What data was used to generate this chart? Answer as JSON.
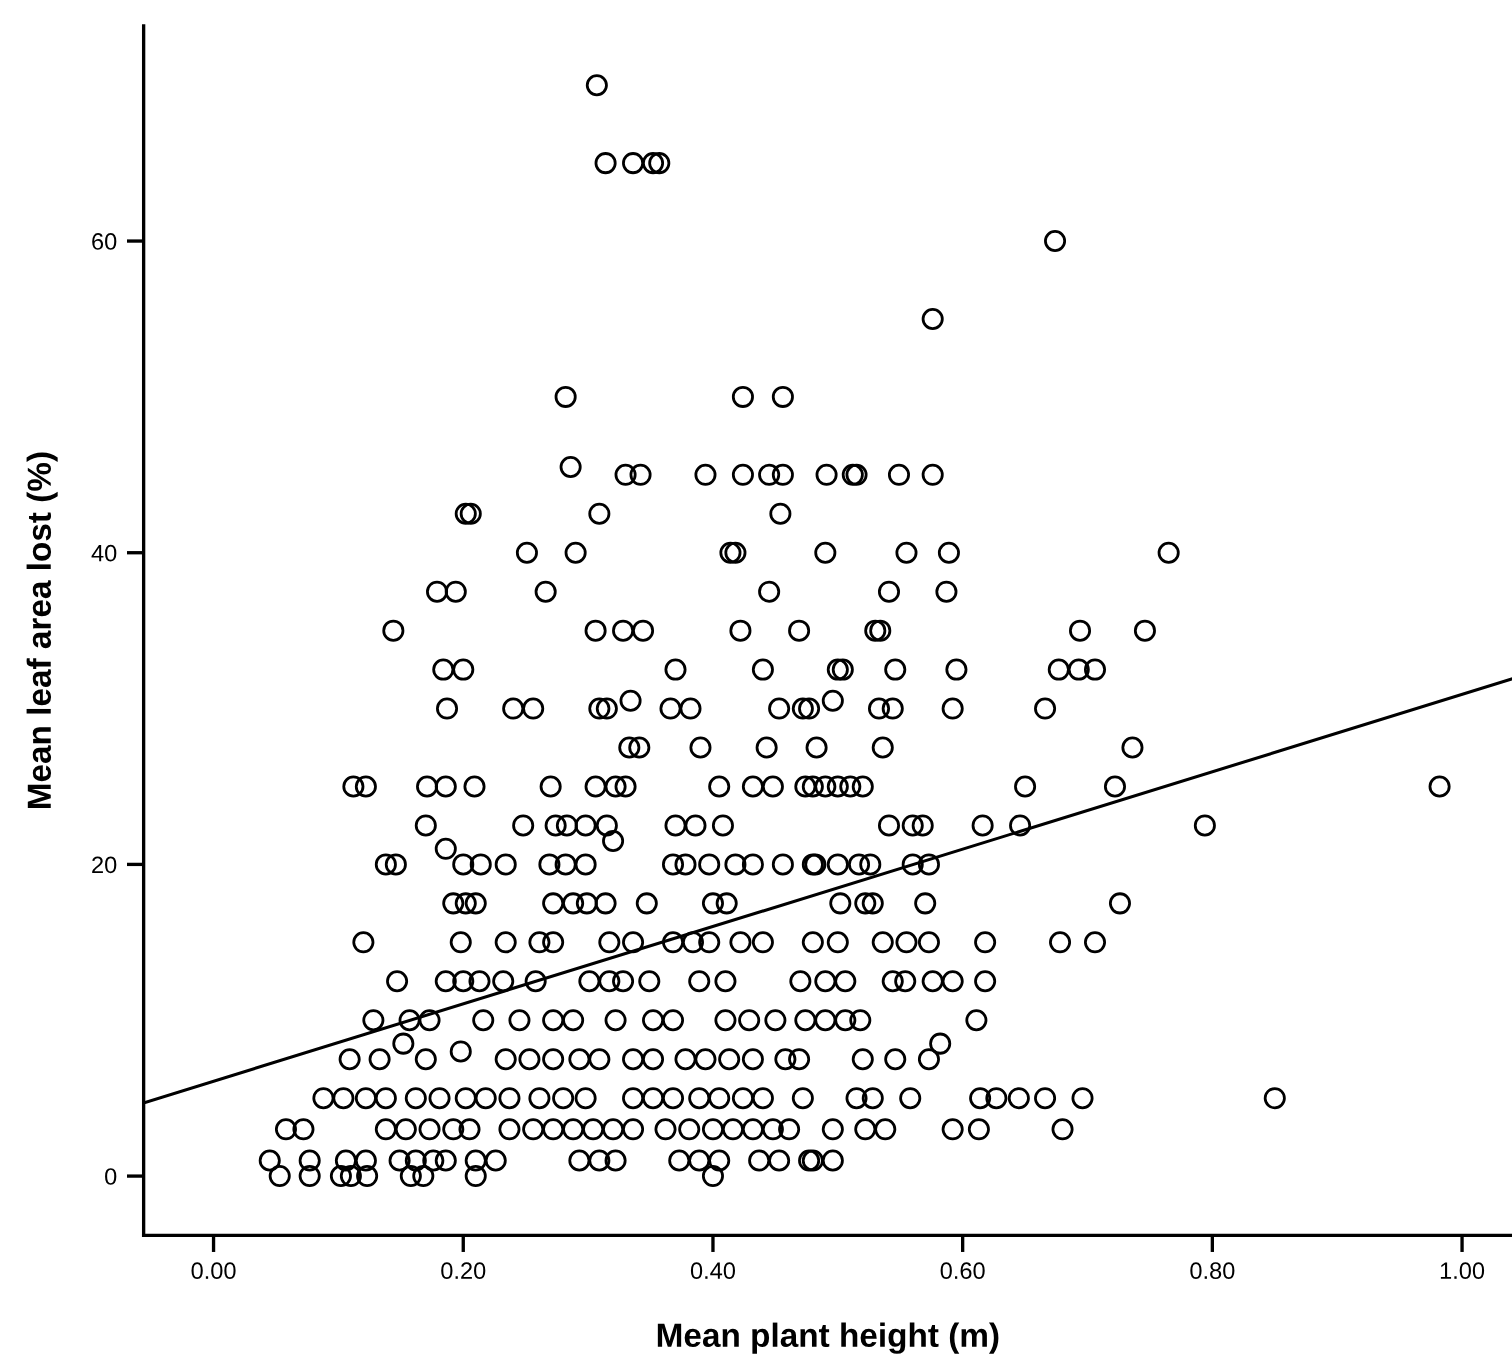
{
  "chart_data": {
    "type": "scatter",
    "xlabel": "Mean plant height (m)",
    "ylabel": "Mean leaf area lost (%)",
    "xlim": [
      -0.056,
      1.04
    ],
    "ylim": [
      -3.8,
      73.8
    ],
    "xticks": [
      {
        "value": 0,
        "label": "0.00"
      },
      {
        "value": 0.2,
        "label": "0.20"
      },
      {
        "value": 0.4,
        "label": "0.40"
      },
      {
        "value": 0.6,
        "label": "0.60"
      },
      {
        "value": 0.8,
        "label": "0.80"
      },
      {
        "value": 1.0,
        "label": "1.00"
      }
    ],
    "yticks": [
      0,
      20,
      40,
      60
    ],
    "grid": false,
    "legend": false,
    "series": [
      {
        "marker": "circle",
        "color": "#000000",
        "x": [
          0.307,
          0.314,
          0.336,
          0.352,
          0.357,
          0.674,
          0.576,
          0.282,
          0.424,
          0.456,
          0.286,
          0.33,
          0.342,
          0.394,
          0.424,
          0.445,
          0.456,
          0.491,
          0.512,
          0.515,
          0.549,
          0.576,
          0.202,
          0.206,
          0.309,
          0.454,
          0.251,
          0.29,
          0.414,
          0.418,
          0.49,
          0.555,
          0.589,
          0.765,
          0.179,
          0.194,
          0.266,
          0.445,
          0.541,
          0.587,
          0.144,
          0.306,
          0.328,
          0.344,
          0.422,
          0.469,
          0.53,
          0.534,
          0.694,
          0.746,
          0.184,
          0.2,
          0.37,
          0.44,
          0.5,
          0.504,
          0.546,
          0.595,
          0.677,
          0.693,
          0.706,
          0.187,
          0.24,
          0.256,
          0.309,
          0.315,
          0.366,
          0.382,
          0.453,
          0.472,
          0.477,
          0.533,
          0.544,
          0.592,
          0.666,
          0.334,
          0.496,
          0.333,
          0.341,
          0.39,
          0.443,
          0.483,
          0.536,
          0.736,
          0.112,
          0.122,
          0.171,
          0.186,
          0.209,
          0.27,
          0.306,
          0.322,
          0.33,
          0.405,
          0.432,
          0.448,
          0.474,
          0.48,
          0.49,
          0.5,
          0.51,
          0.52,
          0.65,
          0.722,
          0.982,
          0.17,
          0.248,
          0.274,
          0.283,
          0.298,
          0.315,
          0.37,
          0.386,
          0.408,
          0.541,
          0.56,
          0.568,
          0.616,
          0.646,
          0.794,
          0.186,
          0.32,
          0.138,
          0.146,
          0.2,
          0.214,
          0.234,
          0.269,
          0.282,
          0.298,
          0.368,
          0.378,
          0.397,
          0.418,
          0.432,
          0.456,
          0.48,
          0.482,
          0.5,
          0.517,
          0.526,
          0.56,
          0.573,
          0.192,
          0.202,
          0.21,
          0.272,
          0.288,
          0.299,
          0.314,
          0.347,
          0.4,
          0.411,
          0.502,
          0.522,
          0.528,
          0.57,
          0.726,
          0.12,
          0.198,
          0.234,
          0.261,
          0.272,
          0.317,
          0.336,
          0.368,
          0.384,
          0.397,
          0.422,
          0.44,
          0.48,
          0.5,
          0.536,
          0.555,
          0.573,
          0.618,
          0.678,
          0.706,
          0.147,
          0.186,
          0.2,
          0.213,
          0.232,
          0.258,
          0.301,
          0.317,
          0.328,
          0.349,
          0.389,
          0.41,
          0.47,
          0.49,
          0.506,
          0.544,
          0.554,
          0.576,
          0.592,
          0.618,
          0.128,
          0.157,
          0.173,
          0.216,
          0.245,
          0.272,
          0.288,
          0.322,
          0.352,
          0.368,
          0.41,
          0.429,
          0.45,
          0.474,
          0.49,
          0.506,
          0.518,
          0.611,
          0.152,
          0.582,
          0.198,
          0.109,
          0.133,
          0.17,
          0.234,
          0.253,
          0.272,
          0.293,
          0.309,
          0.336,
          0.352,
          0.378,
          0.394,
          0.413,
          0.432,
          0.458,
          0.469,
          0.52,
          0.546,
          0.573,
          0.088,
          0.104,
          0.122,
          0.138,
          0.162,
          0.181,
          0.202,
          0.218,
          0.237,
          0.261,
          0.28,
          0.298,
          0.336,
          0.352,
          0.368,
          0.389,
          0.405,
          0.424,
          0.44,
          0.472,
          0.515,
          0.528,
          0.558,
          0.614,
          0.627,
          0.645,
          0.666,
          0.696,
          0.85,
          0.058,
          0.072,
          0.138,
          0.154,
          0.173,
          0.192,
          0.205,
          0.237,
          0.256,
          0.272,
          0.288,
          0.304,
          0.32,
          0.336,
          0.362,
          0.381,
          0.4,
          0.416,
          0.432,
          0.448,
          0.461,
          0.496,
          0.522,
          0.538,
          0.592,
          0.613,
          0.68,
          0.045,
          0.077,
          0.106,
          0.122,
          0.149,
          0.162,
          0.176,
          0.186,
          0.21,
          0.226,
          0.293,
          0.309,
          0.322,
          0.373,
          0.389,
          0.405,
          0.437,
          0.453,
          0.477,
          0.48,
          0.496,
          0.053,
          0.077,
          0.102,
          0.11,
          0.123,
          0.158,
          0.168,
          0.21,
          0.4
        ],
        "values": [
          70,
          65,
          65,
          65,
          65,
          60,
          55,
          50,
          50,
          50,
          45.5,
          45,
          45,
          45,
          45,
          45,
          45,
          45,
          45,
          45,
          45,
          45,
          42.5,
          42.5,
          42.5,
          42.5,
          40,
          40,
          40,
          40,
          40,
          40,
          40,
          40,
          37.5,
          37.5,
          37.5,
          37.5,
          37.5,
          37.5,
          35,
          35,
          35,
          35,
          35,
          35,
          35,
          35,
          35,
          35,
          32.5,
          32.5,
          32.5,
          32.5,
          32.5,
          32.5,
          32.5,
          32.5,
          32.5,
          32.5,
          32.5,
          30,
          30,
          30,
          30,
          30,
          30,
          30,
          30,
          30,
          30,
          30,
          30,
          30,
          30,
          30.5,
          30.5,
          27.5,
          27.5,
          27.5,
          27.5,
          27.5,
          27.5,
          27.5,
          25,
          25,
          25,
          25,
          25,
          25,
          25,
          25,
          25,
          25,
          25,
          25,
          25,
          25,
          25,
          25,
          25,
          25,
          25,
          25,
          25,
          22.5,
          22.5,
          22.5,
          22.5,
          22.5,
          22.5,
          22.5,
          22.5,
          22.5,
          22.5,
          22.5,
          22.5,
          22.5,
          22.5,
          22.5,
          21,
          21.5,
          20,
          20,
          20,
          20,
          20,
          20,
          20,
          20,
          20,
          20,
          20,
          20,
          20,
          20,
          20,
          20,
          20,
          20,
          20,
          20,
          20,
          17.5,
          17.5,
          17.5,
          17.5,
          17.5,
          17.5,
          17.5,
          17.5,
          17.5,
          17.5,
          17.5,
          17.5,
          17.5,
          17.5,
          17.5,
          15,
          15,
          15,
          15,
          15,
          15,
          15,
          15,
          15,
          15,
          15,
          15,
          15,
          15,
          15,
          15,
          15,
          15,
          15,
          15,
          12.5,
          12.5,
          12.5,
          12.5,
          12.5,
          12.5,
          12.5,
          12.5,
          12.5,
          12.5,
          12.5,
          12.5,
          12.5,
          12.5,
          12.5,
          12.5,
          12.5,
          12.5,
          12.5,
          12.5,
          10,
          10,
          10,
          10,
          10,
          10,
          10,
          10,
          10,
          10,
          10,
          10,
          10,
          10,
          10,
          10,
          10,
          10,
          8.5,
          8.5,
          8,
          7.5,
          7.5,
          7.5,
          7.5,
          7.5,
          7.5,
          7.5,
          7.5,
          7.5,
          7.5,
          7.5,
          7.5,
          7.5,
          7.5,
          7.5,
          7.5,
          7.5,
          7.5,
          7.5,
          5,
          5,
          5,
          5,
          5,
          5,
          5,
          5,
          5,
          5,
          5,
          5,
          5,
          5,
          5,
          5,
          5,
          5,
          5,
          5,
          5,
          5,
          5,
          5,
          5,
          5,
          5,
          5,
          5,
          3,
          3,
          3,
          3,
          3,
          3,
          3,
          3,
          3,
          3,
          3,
          3,
          3,
          3,
          3,
          3,
          3,
          3,
          3,
          3,
          3,
          3,
          3,
          3,
          3,
          3,
          3,
          1,
          1,
          1,
          1,
          1,
          1,
          1,
          1,
          1,
          1,
          1,
          1,
          1,
          1,
          1,
          1,
          1,
          1,
          1,
          1,
          1,
          0,
          0,
          0,
          0,
          0,
          0,
          0,
          0,
          0
        ]
      },
      {
        "type": "line",
        "color": "#000000",
        "x": [
          -0.056,
          1.04
        ],
        "values": [
          4.7,
          31.9
        ]
      }
    ]
  }
}
